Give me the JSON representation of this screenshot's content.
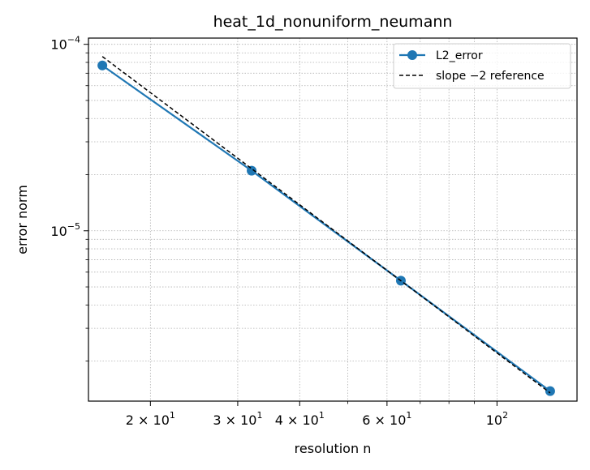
{
  "chart_data": {
    "type": "line",
    "title": "heat_1d_nonuniform_neumann",
    "xlabel": "resolution n",
    "ylabel": "error norm",
    "xscale": "log",
    "yscale": "log",
    "xlim": [
      15.0,
      145.0
    ],
    "ylim": [
      1.22e-06,
      0.000108
    ],
    "grid": true,
    "legend_position": "top-right",
    "x_major_ticks": [
      {
        "value": 20,
        "base": "2 × 10",
        "exp": "1"
      },
      {
        "value": 30,
        "base": "3 × 10",
        "exp": "1"
      },
      {
        "value": 40,
        "base": "4 × 10",
        "exp": "1"
      },
      {
        "value": 60,
        "base": "6 × 10",
        "exp": "1"
      },
      {
        "value": 100,
        "base": "10",
        "exp": "2"
      }
    ],
    "x_minor_ticks": [
      50,
      70,
      80,
      90
    ],
    "y_major_ticks": [
      {
        "value": 1e-05,
        "base": "10",
        "exp": "−5"
      },
      {
        "value": 0.0001,
        "base": "10",
        "exp": "−4"
      }
    ],
    "y_minor_ticks": [
      2e-06,
      3e-06,
      4e-06,
      5e-06,
      6e-06,
      7e-06,
      8e-06,
      9e-06,
      2e-05,
      3e-05,
      4e-05,
      5e-05,
      6e-05,
      7e-05,
      8e-05,
      9e-05
    ],
    "series": [
      {
        "name": "L2_error",
        "style": "solid-marker",
        "color": "#1f77b4",
        "x": [
          16,
          32,
          64,
          128
        ],
        "y": [
          7.7e-05,
          2.1e-05,
          5.4e-06,
          1.38e-06
        ]
      },
      {
        "name": "slope −2 reference",
        "style": "dashed",
        "color": "#000000",
        "x": [
          16,
          128
        ],
        "y": [
          8.6e-05,
          1.35e-06
        ]
      }
    ]
  }
}
